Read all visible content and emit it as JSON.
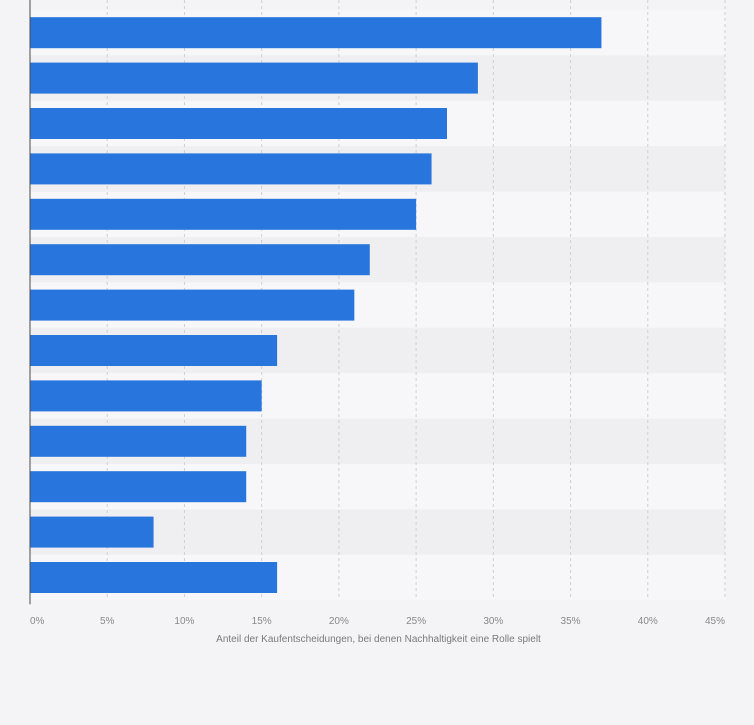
{
  "chart_data": {
    "type": "bar",
    "orientation": "horizontal",
    "categories": [
      "",
      "",
      "",
      "",
      "",
      "",
      "",
      "",
      "",
      "",
      "",
      "",
      ""
    ],
    "values": [
      37,
      29,
      27,
      26,
      25,
      22,
      21,
      16,
      15,
      14,
      14,
      8,
      16
    ],
    "xlabel": "Anteil der Kaufentscheidungen, bei denen Nachhaltigkeit eine Rolle spielt",
    "ylabel": "",
    "xlim": [
      0,
      45
    ],
    "x_ticks": [
      "0%",
      "5%",
      "10%",
      "15%",
      "20%",
      "25%",
      "30%",
      "35%",
      "40%",
      "45%"
    ],
    "grid": true,
    "legend": "none",
    "colors": {
      "bar": "#2775dd",
      "row_light": "#f7f7f9",
      "row_dark": "#efeff1",
      "gridline": "#cfcfd3",
      "axis": "#4a4a4a",
      "tick_text": "#888888",
      "label_text": "#7a7a7a"
    }
  }
}
